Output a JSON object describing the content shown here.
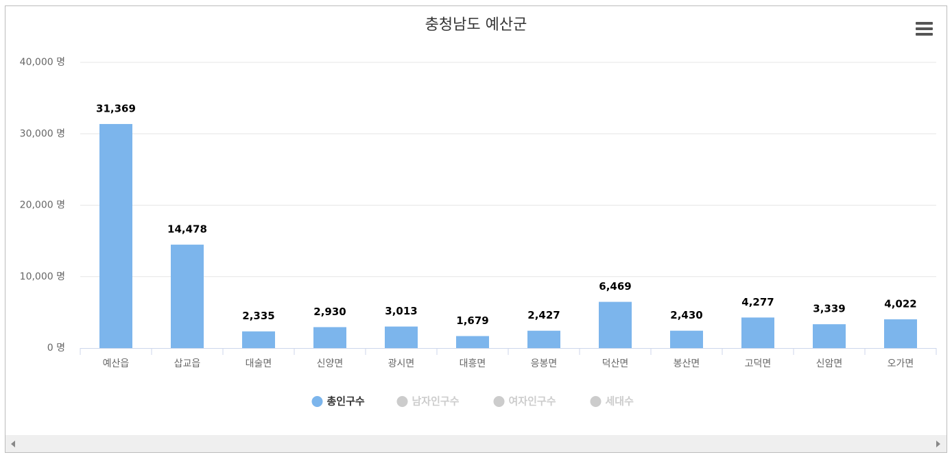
{
  "chart_data": {
    "type": "bar",
    "title": "충청남도 예산군",
    "categories": [
      "예산읍",
      "삽교읍",
      "대술면",
      "신양면",
      "광시면",
      "대흥면",
      "응봉면",
      "덕산면",
      "봉산면",
      "고덕면",
      "신암면",
      "오가면"
    ],
    "series": [
      {
        "name": "총인구수",
        "color": "#7cb5ec",
        "visible": true,
        "values": [
          31369,
          14478,
          2335,
          2930,
          3013,
          1679,
          2427,
          6469,
          2430,
          4277,
          3339,
          4022
        ],
        "value_labels": [
          "31,369",
          "14,478",
          "2,335",
          "2,930",
          "3,013",
          "1,679",
          "2,427",
          "6,469",
          "2,430",
          "4,277",
          "3,339",
          "4,022"
        ]
      },
      {
        "name": "남자인구수",
        "visible": false
      },
      {
        "name": "여자인구수",
        "visible": false
      },
      {
        "name": "세대수",
        "visible": false
      }
    ],
    "ylim": [
      0,
      40000
    ],
    "yticks": [
      {
        "value": 0,
        "label": "0 명"
      },
      {
        "value": 10000,
        "label": "10,000 명"
      },
      {
        "value": 20000,
        "label": "20,000 명"
      },
      {
        "value": 30000,
        "label": "30,000 명"
      },
      {
        "value": 40000,
        "label": "40,000 명"
      }
    ],
    "grid": true
  }
}
